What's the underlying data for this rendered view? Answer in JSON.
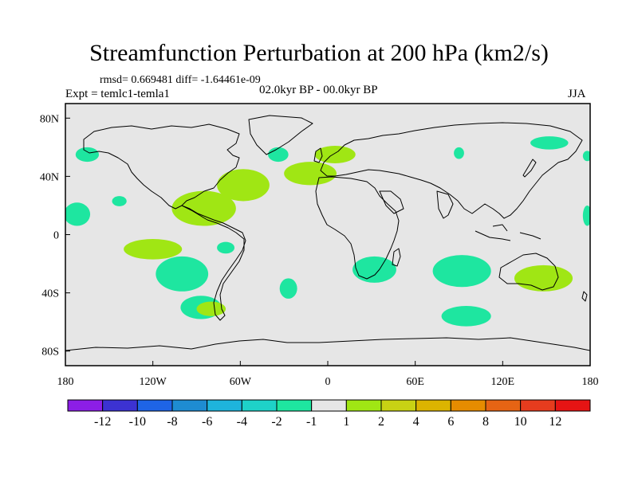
{
  "title": "Streamfunction Perturbation at 200 hPa (km2/s)",
  "stats": "rmsd= 0.669481 diff= -1.64461e-09",
  "expt": "Expt = temlc1-temla1",
  "period": "02.0kyr BP - 00.0kyr BP",
  "season": "JJA",
  "colors": {
    "ocean_bg": "#e6e6e6",
    "coast": "#000000",
    "neg1": "#1ee6a0",
    "pos1": "#a0e614"
  },
  "chart_data": {
    "type": "contour-map",
    "title": "Streamfunction Perturbation at 200 hPa (km2/s)",
    "lon_range": [
      -180,
      180
    ],
    "lat_range": [
      -90,
      90
    ],
    "x_ticks": [
      {
        "value": -180,
        "label": "180"
      },
      {
        "value": -120,
        "label": "120W"
      },
      {
        "value": -60,
        "label": "60W"
      },
      {
        "value": 0,
        "label": "0"
      },
      {
        "value": 60,
        "label": "60E"
      },
      {
        "value": 120,
        "label": "120E"
      },
      {
        "value": 180,
        "label": "180"
      }
    ],
    "y_ticks": [
      {
        "value": 80,
        "label": "80N"
      },
      {
        "value": 40,
        "label": "40N"
      },
      {
        "value": 0,
        "label": "0"
      },
      {
        "value": -40,
        "label": "40S"
      },
      {
        "value": -80,
        "label": "80S"
      }
    ],
    "colorbar": {
      "labels": [
        "-12",
        "-10",
        "-8",
        "-6",
        "-4",
        "-2",
        "-1",
        "1",
        "2",
        "4",
        "6",
        "8",
        "10",
        "12"
      ],
      "colors": [
        "#8c1ee6",
        "#3c32d2",
        "#1e64e6",
        "#1e8cd2",
        "#1eb4dc",
        "#1ed2c8",
        "#1ee6a0",
        "#e6e6e6",
        "#a0e614",
        "#c8d214",
        "#dcb400",
        "#e68c00",
        "#e66414",
        "#e63c1e",
        "#e61414"
      ]
    },
    "regions": [
      {
        "level": "-2..-1",
        "lon": -165,
        "lat": 55,
        "rlon": 8,
        "rlat": 5
      },
      {
        "level": "-2..-1",
        "lon": -172,
        "lat": 14,
        "rlon": 9,
        "rlat": 8
      },
      {
        "level": "-2..-1",
        "lon": -143,
        "lat": 23,
        "rlon": 5,
        "rlat": 3.5
      },
      {
        "level": "-2..-1",
        "lon": -34,
        "lat": 55,
        "rlon": 7,
        "rlat": 5
      },
      {
        "level": "-2..-1",
        "lon": 90,
        "lat": 56,
        "rlon": 3.5,
        "rlat": 4
      },
      {
        "level": "-2..-1",
        "lon": 152,
        "lat": 63,
        "rlon": 13,
        "rlat": 4.5
      },
      {
        "level": "-2..-1",
        "lon": 178,
        "lat": 54,
        "rlon": 3,
        "rlat": 3.5
      },
      {
        "level": "-2..-1",
        "lon": 178,
        "lat": 13,
        "rlon": 3,
        "rlat": 7
      },
      {
        "level": "-2..-1",
        "lon": -100,
        "lat": -27,
        "rlon": 18,
        "rlat": 12
      },
      {
        "level": "-2..-1",
        "lon": -70,
        "lat": -9,
        "rlon": 6,
        "rlat": 4
      },
      {
        "level": "-2..-1",
        "lon": -87,
        "lat": -50,
        "rlon": 14,
        "rlat": 8
      },
      {
        "level": "-2..-1",
        "lon": -27,
        "lat": -37,
        "rlon": 6,
        "rlat": 7
      },
      {
        "level": "-2..-1",
        "lon": 32,
        "lat": -24,
        "rlon": 15,
        "rlat": 9
      },
      {
        "level": "-2..-1",
        "lon": 92,
        "lat": -25,
        "rlon": 20,
        "rlat": 11
      },
      {
        "level": "-2..-1",
        "lon": 95,
        "lat": -56,
        "rlon": 17,
        "rlat": 7
      },
      {
        "level": "1..2",
        "lon": -85,
        "lat": 18,
        "rlon": 22,
        "rlat": 12
      },
      {
        "level": "1..2",
        "lon": -120,
        "lat": -10,
        "rlon": 20,
        "rlat": 7
      },
      {
        "level": "1..2",
        "lon": -58,
        "lat": 34,
        "rlon": 18,
        "rlat": 11
      },
      {
        "level": "1..2",
        "lon": -12,
        "lat": 42,
        "rlon": 18,
        "rlat": 8
      },
      {
        "level": "1..2",
        "lon": 5,
        "lat": 55,
        "rlon": 14,
        "rlat": 6
      },
      {
        "level": "1..2",
        "lon": -80,
        "lat": -51,
        "rlon": 10,
        "rlat": 5
      },
      {
        "level": "1..2",
        "lon": 148,
        "lat": -30,
        "rlon": 20,
        "rlat": 9
      }
    ]
  }
}
